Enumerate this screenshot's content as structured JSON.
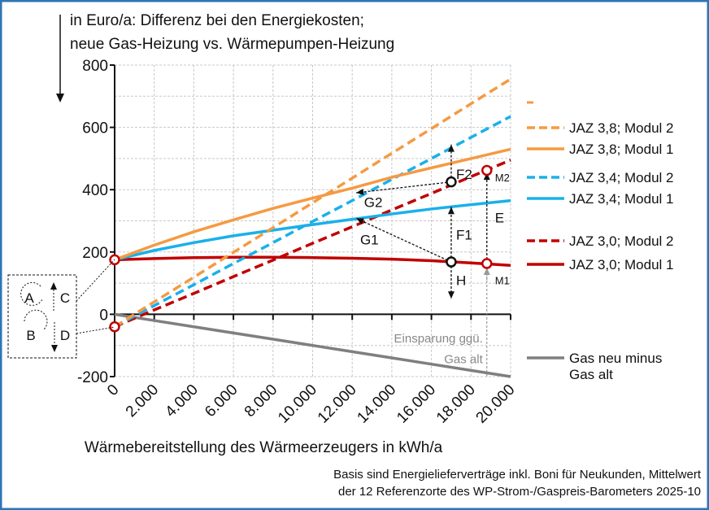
{
  "chart_data": {
    "type": "line",
    "title_lines": [
      "in Euro/a: Differenz bei den Energiekosten;",
      "neue Gas-Heizung vs. Wärmepumpen-Heizung"
    ],
    "xlabel": "Wärmebereitstellung des Wärmeerzeugers in kWh/a",
    "ylabel": "",
    "xlim": [
      0,
      20000
    ],
    "ylim": [
      -200,
      800
    ],
    "x_ticks": [
      "0",
      "2.000",
      "4.000",
      "6.000",
      "8.000",
      "10.000",
      "12.000",
      "14.000",
      "16.000",
      "18.000",
      "20.000"
    ],
    "y_ticks": [
      "800",
      "600",
      "400",
      "200",
      "0",
      "-200"
    ],
    "grid": true,
    "legend_position": "right",
    "x": [
      0,
      2000,
      4000,
      6000,
      8000,
      10000,
      12000,
      14000,
      16000,
      18000,
      20000
    ],
    "series": [
      {
        "name": "JAZ 3,8; Modul 2",
        "color": "#f59a42",
        "dash": true,
        "values": [
          -40,
          40,
          119,
          199,
          278,
          358,
          437,
          517,
          596,
          676,
          755
        ]
      },
      {
        "name": "JAZ 3,8; Modul 1",
        "color": "#f59a42",
        "dash": false,
        "values": [
          175,
          222,
          265,
          303,
          340,
          373,
          405,
          440,
          470,
          500,
          530
        ]
      },
      {
        "name": "JAZ 3,4; Modul 2",
        "color": "#1ab0ea",
        "dash": true,
        "values": [
          -40,
          28,
          95,
          163,
          230,
          298,
          365,
          433,
          500,
          568,
          635
        ]
      },
      {
        "name": "JAZ 3,4; Modul 1",
        "color": "#1ab0ea",
        "dash": false,
        "values": [
          175,
          205,
          230,
          252,
          270,
          288,
          305,
          322,
          338,
          352,
          365
        ]
      },
      {
        "name": "JAZ 3,0; Modul 2",
        "color": "#c00000",
        "dash": true,
        "values": [
          -40,
          14,
          67,
          121,
          174,
          228,
          281,
          335,
          388,
          442,
          495
        ]
      },
      {
        "name": "JAZ 3,0; Modul 1",
        "color": "#c00000",
        "dash": false,
        "values": [
          175,
          179,
          182,
          183,
          183,
          182,
          180,
          177,
          172,
          165,
          157
        ]
      },
      {
        "name": "Gas neu minus Gas alt",
        "color": "#7f7f7f",
        "dash": false,
        "values": [
          0,
          -20,
          -40,
          -60,
          -80,
          -100,
          -120,
          -140,
          -160,
          -180,
          -200
        ]
      }
    ],
    "annotations": {
      "labels": {
        "F1": "F1",
        "F2": "F2",
        "G1": "G1",
        "G2": "G2",
        "H": "H",
        "E": "E",
        "M1": "M1",
        "M2": "M2"
      },
      "gray_note_lines": [
        "Einsparung ggü.",
        "Gas alt"
      ],
      "box_labels": {
        "A": "A",
        "B": "B",
        "C": "C",
        "D": "D"
      }
    },
    "footer_lines": [
      "Basis sind Energielieferverträge inkl. Boni für Neukunden, Mittelwert",
      "der 12 Referenzorte des WP-Strom-/Gaspreis-Barometers 2025-10"
    ],
    "legend_gas_lines": [
      "Gas neu minus",
      "Gas alt"
    ]
  },
  "colors": {
    "frame": "#2e75b6",
    "grid": "#c8c8c8"
  }
}
